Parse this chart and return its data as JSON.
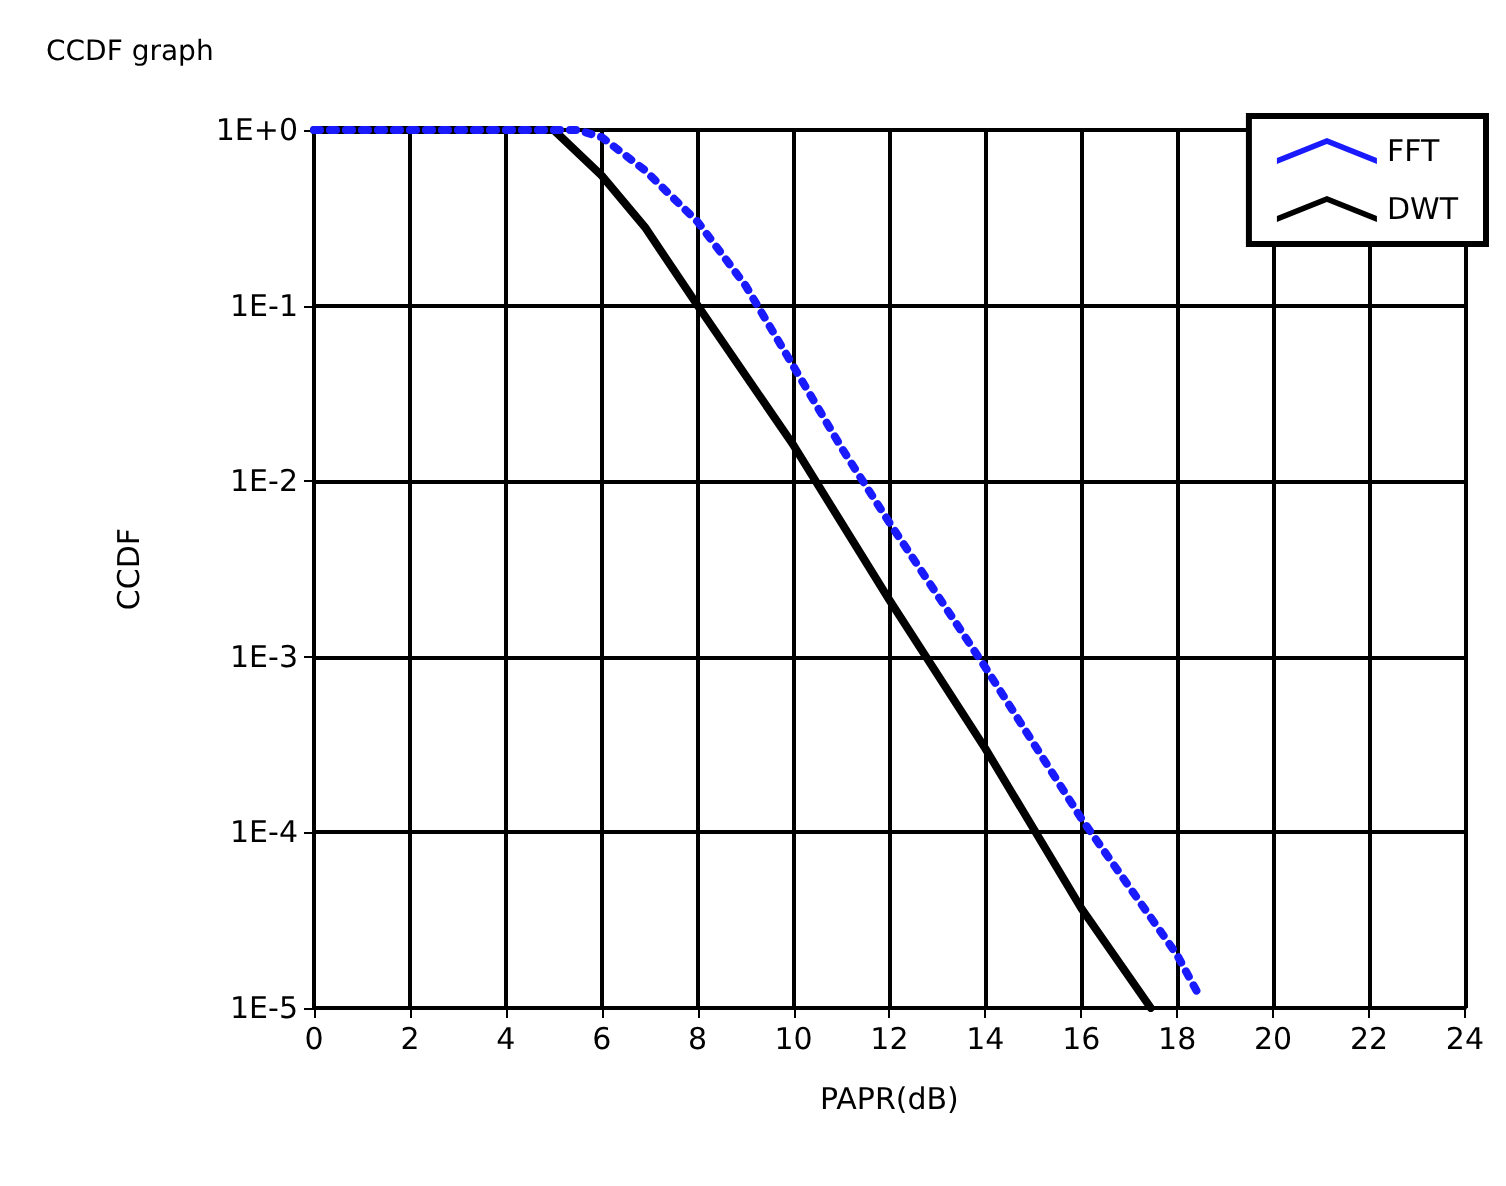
{
  "chart_data": {
    "type": "line",
    "title": "CCDF graph",
    "xlabel": "PAPR(dB)",
    "ylabel": "CCDF",
    "series": [
      {
        "name": "FFT",
        "color": "#1a1aff",
        "line_style": "dotted",
        "x": [
          0,
          5.5,
          6,
          6.9,
          8,
          9,
          10,
          11,
          12,
          14,
          16,
          18,
          18.5
        ],
        "values": [
          1,
          1,
          0.91,
          0.59,
          0.3,
          0.13,
          0.045,
          0.0155,
          0.0058,
          0.00087,
          0.00012,
          2e-05,
          1.12e-05
        ]
      },
      {
        "name": "DWT",
        "color": "#000000",
        "line_style": "solid",
        "x": [
          0,
          5,
          6,
          6.9,
          8,
          10,
          12,
          14,
          16,
          17.45
        ],
        "values": [
          1,
          1,
          0.55,
          0.28,
          0.1,
          0.016,
          0.0021,
          0.0003,
          3.7e-05,
          1e-05
        ]
      }
    ],
    "xlim": [
      0,
      24
    ],
    "xticks": [
      0,
      2,
      4,
      6,
      8,
      10,
      12,
      14,
      16,
      18,
      20,
      22,
      24
    ],
    "ylim": [
      1e-05,
      1
    ],
    "yticks": [
      {
        "value": 1,
        "label": "1E+0"
      },
      {
        "value": 0.1,
        "label": "1E-1"
      },
      {
        "value": 0.01,
        "label": "1E-2"
      },
      {
        "value": 0.001,
        "label": "1E-3"
      },
      {
        "value": 0.0001,
        "label": "1E-4"
      },
      {
        "value": 1e-05,
        "label": "1E-5"
      }
    ],
    "log": "y",
    "grid": true,
    "legend": "top right",
    "marker": "none"
  }
}
